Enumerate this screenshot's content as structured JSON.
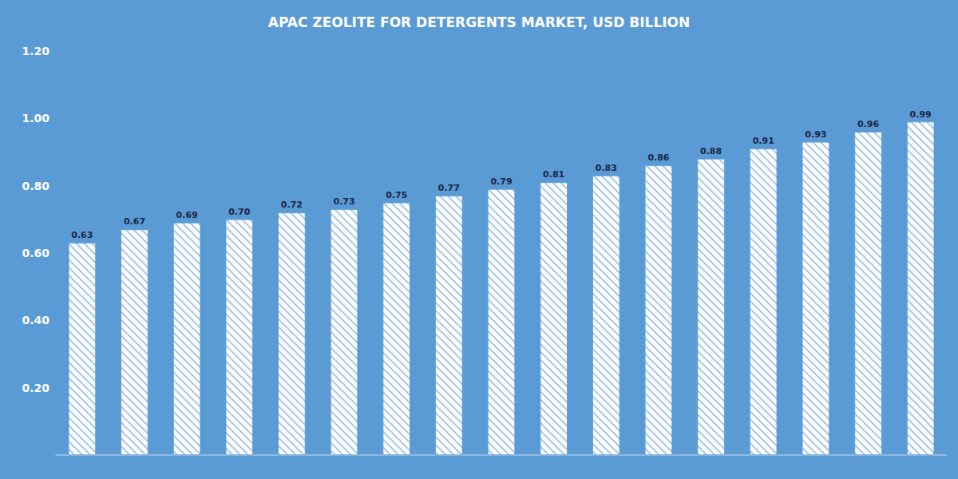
{
  "chart_data": {
    "type": "bar",
    "title": "APAC ZEOLITE FOR DETERGENTS MARKET, USD BILLION",
    "categories": [
      null,
      null,
      null,
      null,
      null,
      null,
      null,
      null,
      null,
      null,
      null,
      null,
      null,
      null,
      null,
      null,
      null
    ],
    "values": [
      0.63,
      0.67,
      0.69,
      0.7,
      0.72,
      0.73,
      0.75,
      0.77,
      0.79,
      0.81,
      0.83,
      0.86,
      0.88,
      0.91,
      0.93,
      0.96,
      0.99
    ],
    "value_labels": [
      "0.63",
      "0.67",
      "0.69",
      "0.70",
      "0.72",
      "0.73",
      "0.75",
      "0.77",
      "0.79",
      "0.81",
      "0.83",
      "0.86",
      "0.88",
      "0.91",
      "0.93",
      "0.96",
      "0.99"
    ],
    "color": "#FFFFFF",
    "ylim": [
      0,
      1.2
    ],
    "yticks": [
      {
        "value": 0.2,
        "label": "0.20"
      },
      {
        "value": 0.4,
        "label": "0.40"
      },
      {
        "value": 0.6,
        "label": "0.60"
      },
      {
        "value": 0.8,
        "label": "0.80"
      },
      {
        "value": 1.0,
        "label": "1.00"
      },
      {
        "value": 1.2,
        "label": "1.20"
      }
    ],
    "grid": false,
    "data_labels": true,
    "tick_labels": "y"
  }
}
